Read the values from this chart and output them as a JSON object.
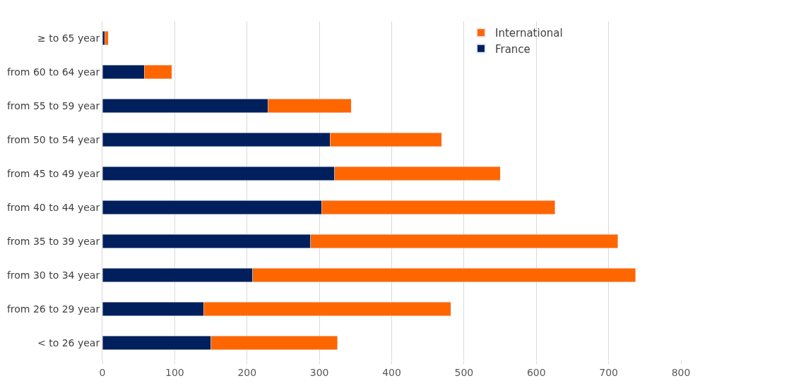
{
  "chart_data": {
    "type": "bar",
    "orientation": "horizontal",
    "stacked": true,
    "categories": [
      "≥ to 65 year",
      "from 60 to 64 year",
      "from 55 to 59 year",
      "from 50 to 54 year",
      "from 45 to 49 year",
      "from 40 to 44 year",
      "from 35 to 39 year",
      "from 30 to 34 year",
      "from 26 to 29 year",
      "< to 26 year"
    ],
    "series": [
      {
        "name": "France",
        "color": "#001f5c",
        "values": [
          3,
          58,
          229,
          315,
          321,
          303,
          288,
          208,
          140,
          150
        ]
      },
      {
        "name": "International",
        "color": "#ff6600",
        "values": [
          5,
          38,
          115,
          154,
          229,
          323,
          425,
          529,
          342,
          175
        ]
      }
    ],
    "xlim": [
      0,
      800
    ],
    "xticks": [
      0,
      100,
      200,
      300,
      400,
      500,
      600,
      700,
      800
    ],
    "grid": "x",
    "legend": "top right"
  }
}
